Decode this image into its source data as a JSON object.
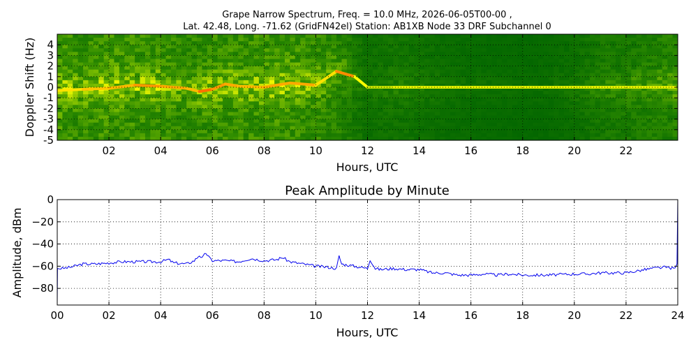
{
  "figure": {
    "title_line1": "Grape Narrow Spectrum, Freq. = 10.0 MHz, 2026-06-05T00-00 ,",
    "title_line2": "Lat.  42.48, Long. -71.62 (GridFN42el) Station: AB1XB Node 33 DRF Subchannel 0"
  },
  "chart_data": [
    {
      "type": "heatmap",
      "title": "",
      "xlabel": "Hours, UTC",
      "ylabel": "Doppler Shift (Hz)",
      "xlim": [
        0,
        24
      ],
      "ylim": [
        -5,
        5
      ],
      "x_ticks": [
        2,
        4,
        6,
        8,
        10,
        12,
        14,
        16,
        18,
        20,
        22
      ],
      "x_tick_labels": [
        "02",
        "04",
        "06",
        "08",
        "10",
        "12",
        "14",
        "16",
        "18",
        "20",
        "22"
      ],
      "y_ticks": [
        -5,
        -4,
        -3,
        -2,
        -1,
        0,
        1,
        2,
        3,
        4
      ],
      "y_tick_labels": [
        "-5",
        "-4",
        "-3",
        "-2",
        "-1",
        "0",
        "1",
        "2",
        "3",
        "4"
      ],
      "colormap": [
        "#006400",
        "#2e8b00",
        "#7fbf00",
        "#ffff00",
        "#ff8c00",
        "#ff2000"
      ],
      "background_color": "#0a7a0a",
      "carrier_trace": {
        "hours": [
          0,
          1,
          2,
          3,
          4,
          5,
          5.5,
          6,
          6.5,
          7,
          8,
          9,
          10,
          10.8,
          11.5,
          12,
          13,
          14,
          16,
          18,
          20,
          21,
          22,
          23,
          23.9
        ],
        "doppler_hz": [
          -0.3,
          -0.2,
          -0.1,
          0.2,
          0.1,
          -0.1,
          -0.4,
          -0.2,
          0.3,
          0.1,
          0.0,
          0.4,
          0.2,
          1.5,
          1.0,
          0.0,
          0.0,
          0.0,
          0.0,
          0.0,
          0.0,
          0.0,
          0.0,
          0.0,
          0.0
        ],
        "strength": [
          0.65,
          0.7,
          0.72,
          0.78,
          0.75,
          0.72,
          0.85,
          0.78,
          0.75,
          0.72,
          0.75,
          0.75,
          0.65,
          0.8,
          0.6,
          0.5,
          0.55,
          0.55,
          0.55,
          0.55,
          0.55,
          0.55,
          0.55,
          0.55,
          0.6
        ]
      },
      "background_activity": {
        "hours": [
          0,
          1,
          2,
          3,
          4,
          5,
          6,
          7,
          8,
          9,
          10,
          11,
          12,
          13,
          14,
          15,
          16,
          17,
          18,
          19,
          20,
          21,
          22,
          23,
          24
        ],
        "level": [
          0.55,
          0.45,
          0.55,
          0.5,
          0.5,
          0.4,
          0.5,
          0.48,
          0.5,
          0.52,
          0.45,
          0.35,
          0.12,
          0.18,
          0.14,
          0.1,
          0.08,
          0.07,
          0.06,
          0.07,
          0.12,
          0.22,
          0.25,
          0.3,
          0.35
        ]
      },
      "grid": true
    },
    {
      "type": "line",
      "title": "Peak Amplitude by Minute",
      "xlabel": "Hours, UTC",
      "ylabel": "Amplitude, dBm",
      "xlim": [
        0,
        24
      ],
      "ylim": [
        -95,
        0
      ],
      "x_ticks": [
        0,
        2,
        4,
        6,
        8,
        10,
        12,
        14,
        16,
        18,
        20,
        22,
        24
      ],
      "x_tick_labels": [
        "00",
        "02",
        "04",
        "06",
        "08",
        "10",
        "12",
        "14",
        "16",
        "18",
        "20",
        "22",
        "24"
      ],
      "y_ticks": [
        -80,
        -60,
        -40,
        -20,
        0
      ],
      "y_tick_labels": [
        "−80",
        "−60",
        "−40",
        "−20",
        "0"
      ],
      "grid": true,
      "series": [
        {
          "color": "#0000ee",
          "x": [
            0,
            0.01,
            0.2,
            0.5,
            1.0,
            1.5,
            2.0,
            2.5,
            3.0,
            3.5,
            4.0,
            4.3,
            4.5,
            5.0,
            5.3,
            5.5,
            5.6,
            5.75,
            5.9,
            6.0,
            6.5,
            7.0,
            7.5,
            8.0,
            8.5,
            8.7,
            9.0,
            9.5,
            10.0,
            10.5,
            10.8,
            10.9,
            11.0,
            11.5,
            12.0,
            12.1,
            12.3,
            12.5,
            13.0,
            13.5,
            14.0,
            14.5,
            15.0,
            15.5,
            16.0,
            16.5,
            17.0,
            17.5,
            18.0,
            19.0,
            20.0,
            20.5,
            21.0,
            21.5,
            22.0,
            22.5,
            23.0,
            23.5,
            23.9,
            23.97,
            24.0
          ],
          "y": [
            -93,
            -62,
            -62,
            -61,
            -58,
            -58,
            -57,
            -56,
            -56,
            -56,
            -56,
            -54,
            -57,
            -58,
            -55,
            -50,
            -53,
            -48,
            -53,
            -55,
            -55,
            -56,
            -53,
            -55,
            -54,
            -52,
            -56,
            -58,
            -60,
            -61,
            -62,
            -51,
            -58,
            -60,
            -62,
            -54,
            -62,
            -63,
            -62,
            -63,
            -63,
            -66,
            -66,
            -68,
            -68,
            -67,
            -68,
            -67,
            -68,
            -68,
            -67,
            -67,
            -66,
            -66,
            -66,
            -64,
            -62,
            -61,
            -62,
            -58,
            0
          ]
        }
      ]
    }
  ]
}
